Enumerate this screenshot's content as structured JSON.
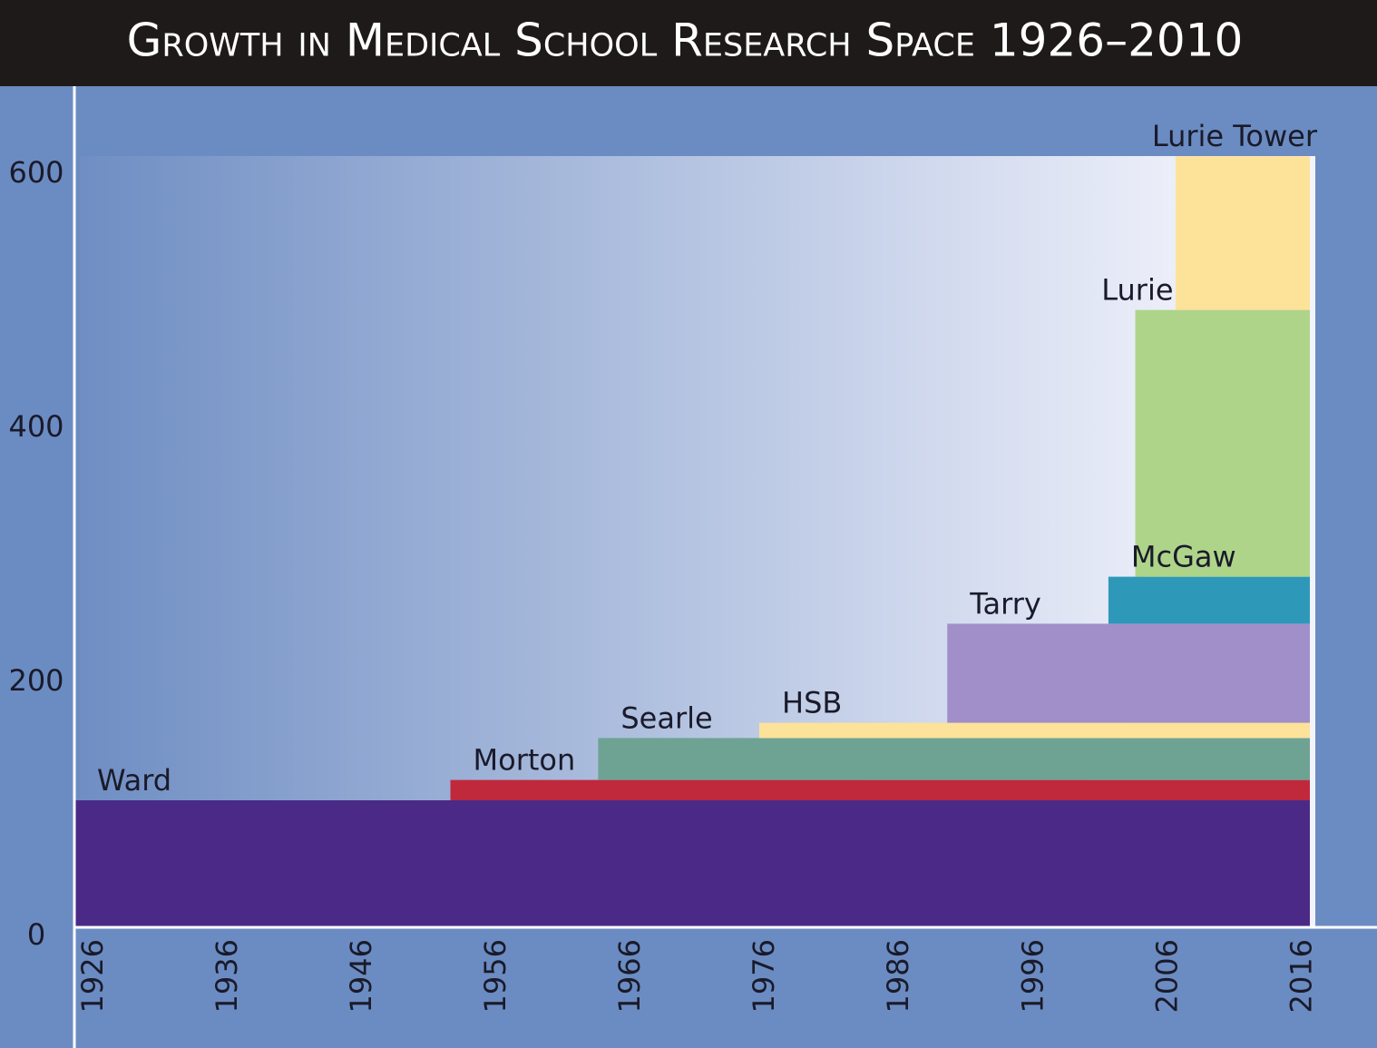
{
  "chart_data": {
    "type": "stacked-step",
    "title": "Growth in Medical School Research Space 1926–2010",
    "xlim": [
      1926,
      2023
    ],
    "ylim": [
      0,
      660
    ],
    "xticks": [
      1926,
      1936,
      1946,
      1956,
      1966,
      1976,
      1986,
      1996,
      2006,
      2016
    ],
    "yticks": [
      0,
      200,
      400,
      600
    ],
    "x_end": 2018,
    "series": [
      {
        "name": "Ward",
        "color": "#4a2a86",
        "x": 1926,
        "values": 100
      },
      {
        "name": "Morton",
        "color": "#c0283c",
        "x": 1954,
        "values": 16
      },
      {
        "name": "Searle",
        "color": "#6ea393",
        "x": 1965,
        "values": 33
      },
      {
        "name": "HSB",
        "color": "#fde29a",
        "x": 1977,
        "values": 12
      },
      {
        "name": "Tarry",
        "color": "#a08fc8",
        "x": 1991,
        "values": 78
      },
      {
        "name": "McGaw",
        "color": "#2e98b8",
        "x": 2003,
        "values": 37
      },
      {
        "name": "Lurie",
        "color": "#aed48a",
        "x": 2005,
        "values": 210
      },
      {
        "name": "Lurie Tower",
        "color": "#fde29a",
        "x": 2008,
        "values": 121
      }
    ]
  }
}
